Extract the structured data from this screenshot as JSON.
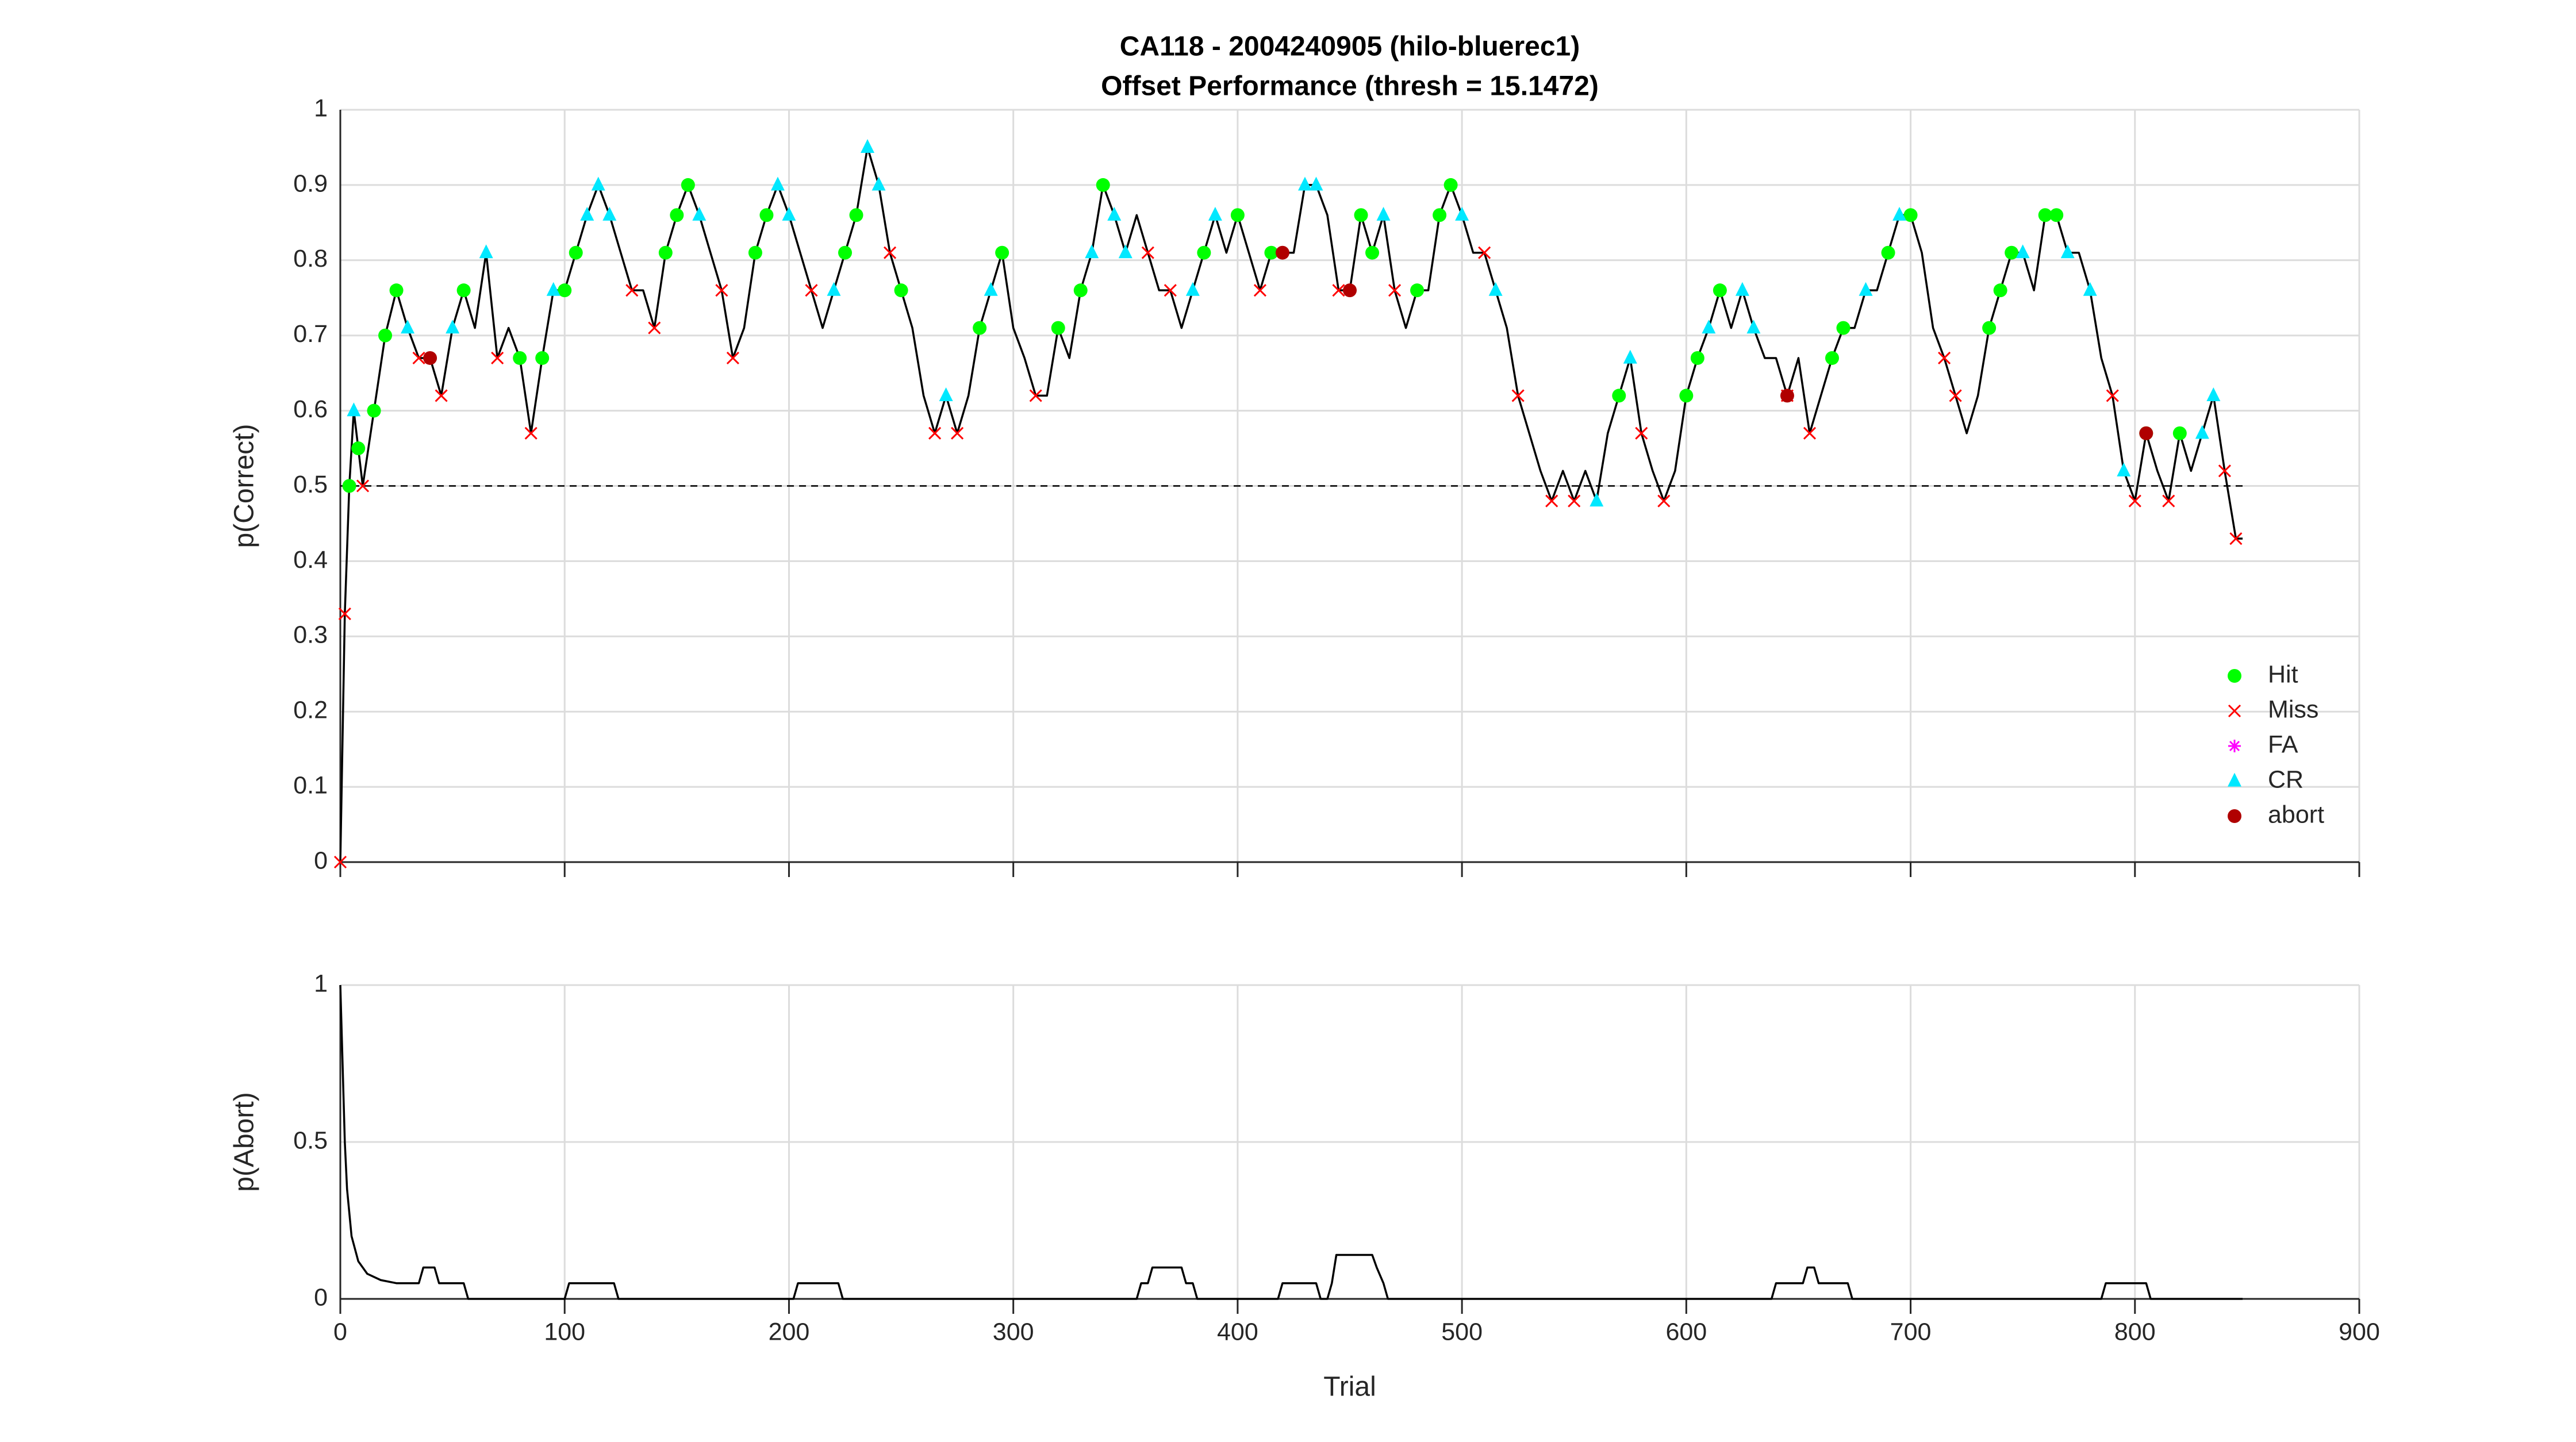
{
  "chart_data": [
    {
      "type": "line",
      "title": "CA118 - 2004240905 (hilo-bluerec1)",
      "subtitle": "Offset Performance (thresh = 15.1472)",
      "ylabel": "p(Correct)",
      "xlim": [
        0,
        900
      ],
      "xticks": [
        0,
        100,
        200,
        300,
        400,
        500,
        600,
        700,
        800,
        900
      ],
      "ylim": [
        0,
        1
      ],
      "yticks": [
        0,
        0.1,
        0.2,
        0.3,
        0.4,
        0.5,
        0.6,
        0.7,
        0.8,
        0.9,
        1
      ],
      "show_xtick_labels": false,
      "grid": true,
      "legend": "southeast",
      "color": "#000000",
      "threshold_line": {
        "y": 0.5,
        "x": [
          0,
          848
        ],
        "color": "#000000"
      },
      "x": [
        0,
        2,
        4,
        6,
        8,
        10,
        15,
        20,
        25,
        30,
        35,
        40,
        45,
        50,
        55,
        60,
        65,
        70,
        75,
        80,
        85,
        90,
        95,
        100,
        105,
        110,
        115,
        120,
        125,
        130,
        135,
        140,
        145,
        150,
        155,
        160,
        165,
        170,
        175,
        180,
        185,
        190,
        195,
        200,
        205,
        210,
        215,
        220,
        225,
        230,
        235,
        240,
        245,
        250,
        255,
        260,
        265,
        270,
        275,
        280,
        285,
        290,
        295,
        300,
        305,
        310,
        315,
        320,
        325,
        330,
        335,
        340,
        345,
        350,
        355,
        360,
        365,
        370,
        375,
        380,
        385,
        390,
        395,
        400,
        405,
        410,
        415,
        420,
        425,
        430,
        435,
        440,
        445,
        450,
        455,
        460,
        465,
        470,
        475,
        480,
        485,
        490,
        495,
        500,
        505,
        510,
        515,
        520,
        525,
        530,
        535,
        540,
        545,
        550,
        555,
        560,
        565,
        570,
        575,
        580,
        585,
        590,
        595,
        600,
        605,
        610,
        615,
        620,
        625,
        630,
        635,
        640,
        645,
        650,
        655,
        660,
        665,
        670,
        675,
        680,
        685,
        690,
        695,
        700,
        705,
        710,
        715,
        720,
        725,
        730,
        735,
        740,
        745,
        750,
        755,
        760,
        765,
        770,
        775,
        780,
        785,
        790,
        795,
        800,
        805,
        810,
        815,
        820,
        825,
        830,
        835,
        840,
        845,
        848
      ],
      "values": [
        0,
        0.33,
        0.5,
        0.6,
        0.55,
        0.5,
        0.6,
        0.7,
        0.76,
        0.71,
        0.67,
        0.67,
        0.62,
        0.71,
        0.76,
        0.71,
        0.81,
        0.67,
        0.71,
        0.67,
        0.57,
        0.67,
        0.76,
        0.76,
        0.81,
        0.86,
        0.9,
        0.86,
        0.81,
        0.76,
        0.76,
        0.71,
        0.81,
        0.86,
        0.9,
        0.86,
        0.81,
        0.76,
        0.67,
        0.71,
        0.81,
        0.86,
        0.9,
        0.86,
        0.81,
        0.76,
        0.71,
        0.76,
        0.81,
        0.86,
        0.95,
        0.9,
        0.81,
        0.76,
        0.71,
        0.62,
        0.57,
        0.62,
        0.57,
        0.62,
        0.71,
        0.76,
        0.81,
        0.71,
        0.67,
        0.62,
        0.62,
        0.71,
        0.67,
        0.76,
        0.81,
        0.9,
        0.86,
        0.81,
        0.86,
        0.81,
        0.76,
        0.76,
        0.71,
        0.76,
        0.81,
        0.86,
        0.81,
        0.86,
        0.81,
        0.76,
        0.81,
        0.81,
        0.81,
        0.9,
        0.9,
        0.86,
        0.76,
        0.76,
        0.86,
        0.81,
        0.86,
        0.76,
        0.71,
        0.76,
        0.76,
        0.86,
        0.9,
        0.86,
        0.81,
        0.81,
        0.76,
        0.71,
        0.62,
        0.57,
        0.52,
        0.48,
        0.52,
        0.48,
        0.52,
        0.48,
        0.57,
        0.62,
        0.67,
        0.57,
        0.52,
        0.48,
        0.52,
        0.62,
        0.67,
        0.71,
        0.76,
        0.71,
        0.76,
        0.71,
        0.67,
        0.67,
        0.62,
        0.67,
        0.57,
        0.62,
        0.67,
        0.71,
        0.71,
        0.76,
        0.76,
        0.81,
        0.86,
        0.86,
        0.81,
        0.71,
        0.67,
        0.62,
        0.57,
        0.62,
        0.71,
        0.76,
        0.81,
        0.81,
        0.76,
        0.86,
        0.86,
        0.81,
        0.81,
        0.76,
        0.67,
        0.62,
        0.52,
        0.48,
        0.57,
        0.52,
        0.48,
        0.57,
        0.52,
        0.57,
        0.62,
        0.52,
        0.43,
        0.43
      ],
      "markers": [
        {
          "name": "Hit",
          "color": "#00ff00",
          "symbol": "circle",
          "x": [
            4,
            8,
            15,
            20,
            25,
            55,
            80,
            90,
            100,
            105,
            145,
            150,
            155,
            185,
            190,
            225,
            230,
            250,
            285,
            295,
            320,
            330,
            340,
            385,
            400,
            415,
            455,
            460,
            480,
            490,
            495,
            570,
            600,
            605,
            615,
            665,
            670,
            690,
            700,
            735,
            740,
            745,
            760,
            765,
            805,
            820
          ],
          "values": [
            0.5,
            0.55,
            0.6,
            0.7,
            0.76,
            0.76,
            0.67,
            0.67,
            0.76,
            0.81,
            0.81,
            0.86,
            0.9,
            0.81,
            0.86,
            0.81,
            0.86,
            0.76,
            0.71,
            0.81,
            0.71,
            0.76,
            0.9,
            0.81,
            0.86,
            0.81,
            0.86,
            0.81,
            0.76,
            0.86,
            0.9,
            0.62,
            0.62,
            0.67,
            0.76,
            0.67,
            0.71,
            0.81,
            0.86,
            0.71,
            0.76,
            0.81,
            0.86,
            0.86,
            0.57,
            0.57
          ]
        },
        {
          "name": "Miss",
          "color": "#ff0000",
          "symbol": "x",
          "x": [
            0,
            2,
            10,
            35,
            45,
            70,
            85,
            130,
            140,
            170,
            175,
            210,
            245,
            265,
            275,
            310,
            360,
            370,
            410,
            445,
            470,
            510,
            525,
            540,
            550,
            580,
            590,
            645,
            655,
            715,
            720,
            790,
            800,
            815,
            840,
            845
          ],
          "values": [
            0,
            0.33,
            0.5,
            0.67,
            0.62,
            0.67,
            0.57,
            0.76,
            0.71,
            0.76,
            0.67,
            0.76,
            0.81,
            0.57,
            0.57,
            0.62,
            0.81,
            0.76,
            0.76,
            0.76,
            0.76,
            0.81,
            0.62,
            0.48,
            0.48,
            0.57,
            0.48,
            0.62,
            0.57,
            0.67,
            0.62,
            0.62,
            0.48,
            0.48,
            0.52,
            0.43
          ]
        },
        {
          "name": "FA",
          "color": "#ff00ff",
          "symbol": "asterisk",
          "x": [],
          "values": []
        },
        {
          "name": "CR",
          "color": "#00e8ff",
          "symbol": "triangle",
          "x": [
            6,
            30,
            50,
            65,
            95,
            110,
            115,
            120,
            160,
            195,
            200,
            220,
            235,
            240,
            270,
            290,
            335,
            345,
            350,
            380,
            390,
            430,
            435,
            465,
            500,
            515,
            560,
            575,
            610,
            625,
            630,
            680,
            695,
            750,
            770,
            780,
            795,
            830,
            835
          ],
          "values": [
            0.6,
            0.71,
            0.71,
            0.81,
            0.76,
            0.86,
            0.9,
            0.86,
            0.86,
            0.9,
            0.86,
            0.76,
            0.95,
            0.9,
            0.62,
            0.76,
            0.81,
            0.86,
            0.81,
            0.76,
            0.86,
            0.9,
            0.9,
            0.86,
            0.86,
            0.76,
            0.48,
            0.67,
            0.71,
            0.76,
            0.71,
            0.76,
            0.86,
            0.81,
            0.81,
            0.76,
            0.52,
            0.57,
            0.62
          ]
        },
        {
          "name": "abort",
          "color": "#b00000",
          "symbol": "circle",
          "x": [
            40,
            420,
            450,
            645,
            805
          ],
          "values": [
            0.67,
            0.81,
            0.76,
            0.62,
            0.57
          ]
        }
      ]
    },
    {
      "type": "line",
      "ylabel": "p(Abort)",
      "xlabel": "Trial",
      "xlim": [
        0,
        900
      ],
      "xticks": [
        0,
        100,
        200,
        300,
        400,
        500,
        600,
        700,
        800,
        900
      ],
      "ylim": [
        0,
        1
      ],
      "yticks": [
        0,
        0.5,
        1
      ],
      "grid": true,
      "color": "#000000",
      "x": [
        0,
        1,
        2,
        3,
        5,
        8,
        12,
        18,
        25,
        35,
        37,
        42,
        44,
        55,
        57,
        100,
        102,
        122,
        124,
        202,
        204,
        222,
        224,
        355,
        357,
        360,
        362,
        375,
        377,
        380,
        382,
        418,
        420,
        435,
        437,
        440,
        442,
        444,
        460,
        462,
        465,
        467,
        638,
        640,
        652,
        654,
        657,
        659,
        672,
        674,
        785,
        787,
        805,
        807,
        848
      ],
      "values": [
        1,
        0.75,
        0.5,
        0.35,
        0.2,
        0.12,
        0.08,
        0.06,
        0.05,
        0.05,
        0.1,
        0.1,
        0.05,
        0.05,
        0,
        0,
        0.05,
        0.05,
        0,
        0,
        0.05,
        0.05,
        0,
        0,
        0.05,
        0.05,
        0.1,
        0.1,
        0.05,
        0.05,
        0,
        0,
        0.05,
        0.05,
        0,
        0,
        0.05,
        0.14,
        0.14,
        0.1,
        0.05,
        0,
        0,
        0.05,
        0.05,
        0.1,
        0.1,
        0.05,
        0.05,
        0,
        0,
        0.05,
        0.05,
        0,
        0
      ]
    }
  ]
}
